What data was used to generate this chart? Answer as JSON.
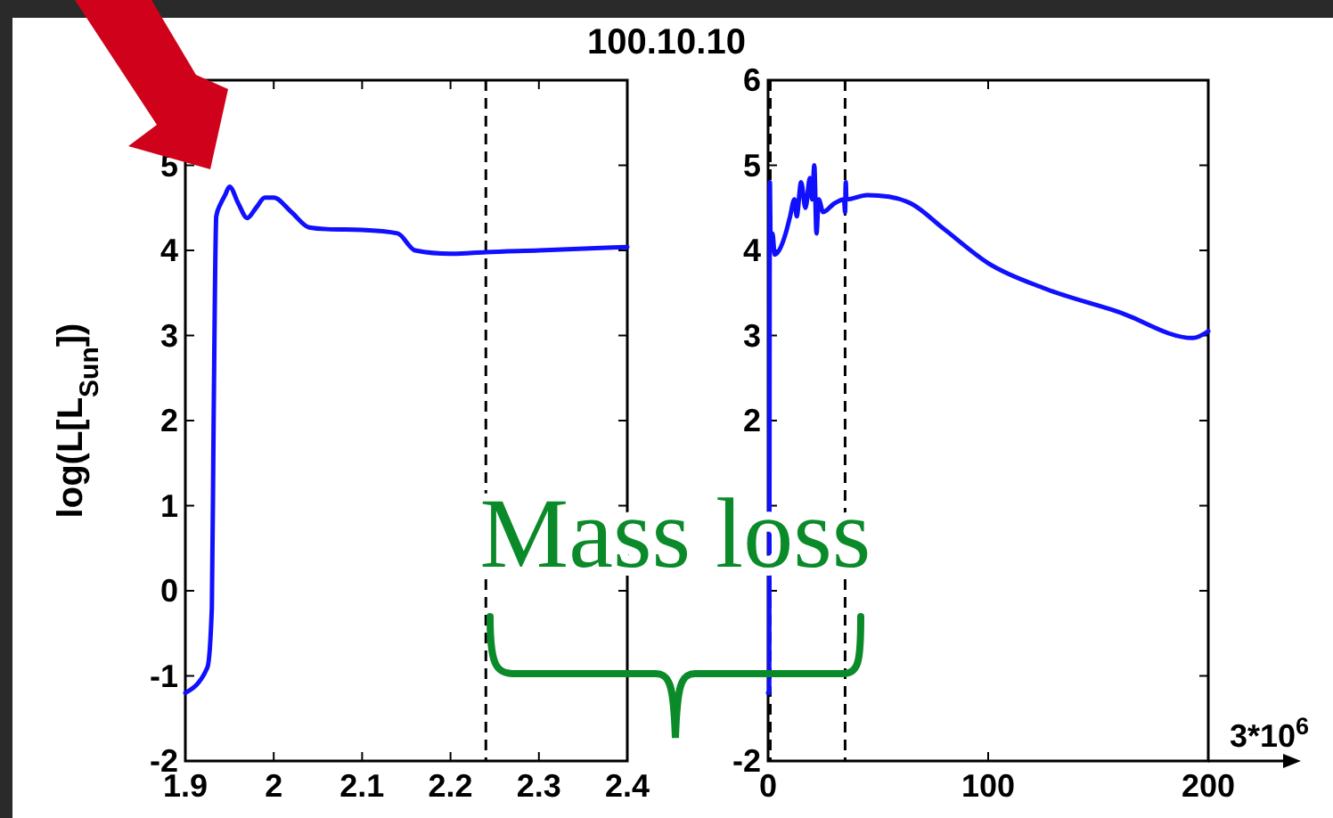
{
  "chart_data": [
    {
      "type": "line",
      "title": "100.10.10",
      "ylabel": "log(L[L$_{Sun}$])",
      "annotations": [
        "Mass loss"
      ],
      "x": [
        1.9,
        1.925,
        1.93,
        1.932,
        1.935,
        1.94,
        1.945,
        1.95,
        1.96,
        1.97,
        1.98,
        1.99,
        2.0,
        2.02,
        2.04,
        2.06,
        2.1,
        2.14,
        2.16,
        2.2,
        2.24,
        2.3,
        2.4
      ],
      "series": [
        {
          "color": "#1010ff",
          "values": [
            -1.2,
            -0.9,
            -0.2,
            2,
            4.4,
            4.55,
            4.65,
            4.75,
            4.55,
            4.38,
            4.5,
            4.62,
            4.62,
            4.45,
            4.27,
            4.25,
            4.24,
            4.2,
            4.0,
            3.96,
            3.98,
            4.0,
            4.04
          ]
        }
      ],
      "xlim": [
        1.9,
        2.4
      ],
      "xticks": [
        1.9,
        2,
        2.1,
        2.2,
        2.3,
        2.4
      ],
      "ylim": [
        -2,
        6
      ],
      "yticks": [
        -2,
        -1,
        0,
        1,
        2,
        3,
        4,
        5,
        {
          "value": 6,
          "label": null
        }
      ],
      "ref_lines": [
        {
          "axis": "x",
          "value": 2.24,
          "color": "#000000",
          "line_style": "dashed"
        }
      ],
      "grid": false,
      "marker": "none",
      "line_style": "solid"
    },
    {
      "type": "line",
      "xlabel": "3*10$^{6}$",
      "x": [
        0,
        0.5,
        0.8,
        1.2,
        2,
        3,
        5,
        8,
        10,
        12,
        13,
        15,
        17,
        19,
        20,
        21,
        22,
        23,
        25,
        30,
        34.5,
        35,
        35.3,
        35.6,
        45,
        55,
        65,
        80,
        100,
        126,
        159,
        193,
        200
      ],
      "series": [
        {
          "color": "#1010ff",
          "values": [
            -1.2,
            -1.2,
            4.8,
            4.0,
            4.2,
            3.95,
            4.0,
            4.2,
            4.4,
            4.6,
            4.4,
            4.8,
            4.5,
            4.85,
            4.6,
            5.0,
            4.2,
            4.6,
            4.45,
            4.55,
            4.6,
            4.45,
            4.8,
            4.6,
            4.65,
            4.63,
            4.55,
            4.25,
            3.85,
            3.55,
            3.28,
            2.97,
            3.05
          ]
        }
      ],
      "xlim": [
        0,
        200
      ],
      "xticks": [
        0,
        100,
        200
      ],
      "ylim": [
        -2,
        6
      ],
      "yticks": [
        -2,
        {
          "value": -1,
          "label": null
        },
        {
          "value": 0,
          "label": null
        },
        {
          "value": 1,
          "label": null
        },
        2,
        3,
        4,
        5,
        6
      ],
      "ref_lines": [
        {
          "axis": "x",
          "value": 1,
          "color": "#000000",
          "line_style": "dashed"
        },
        {
          "axis": "x",
          "value": 35,
          "color": "#000000",
          "line_style": "dashed"
        }
      ],
      "grid": false,
      "marker": "none",
      "line_style": "solid"
    }
  ]
}
